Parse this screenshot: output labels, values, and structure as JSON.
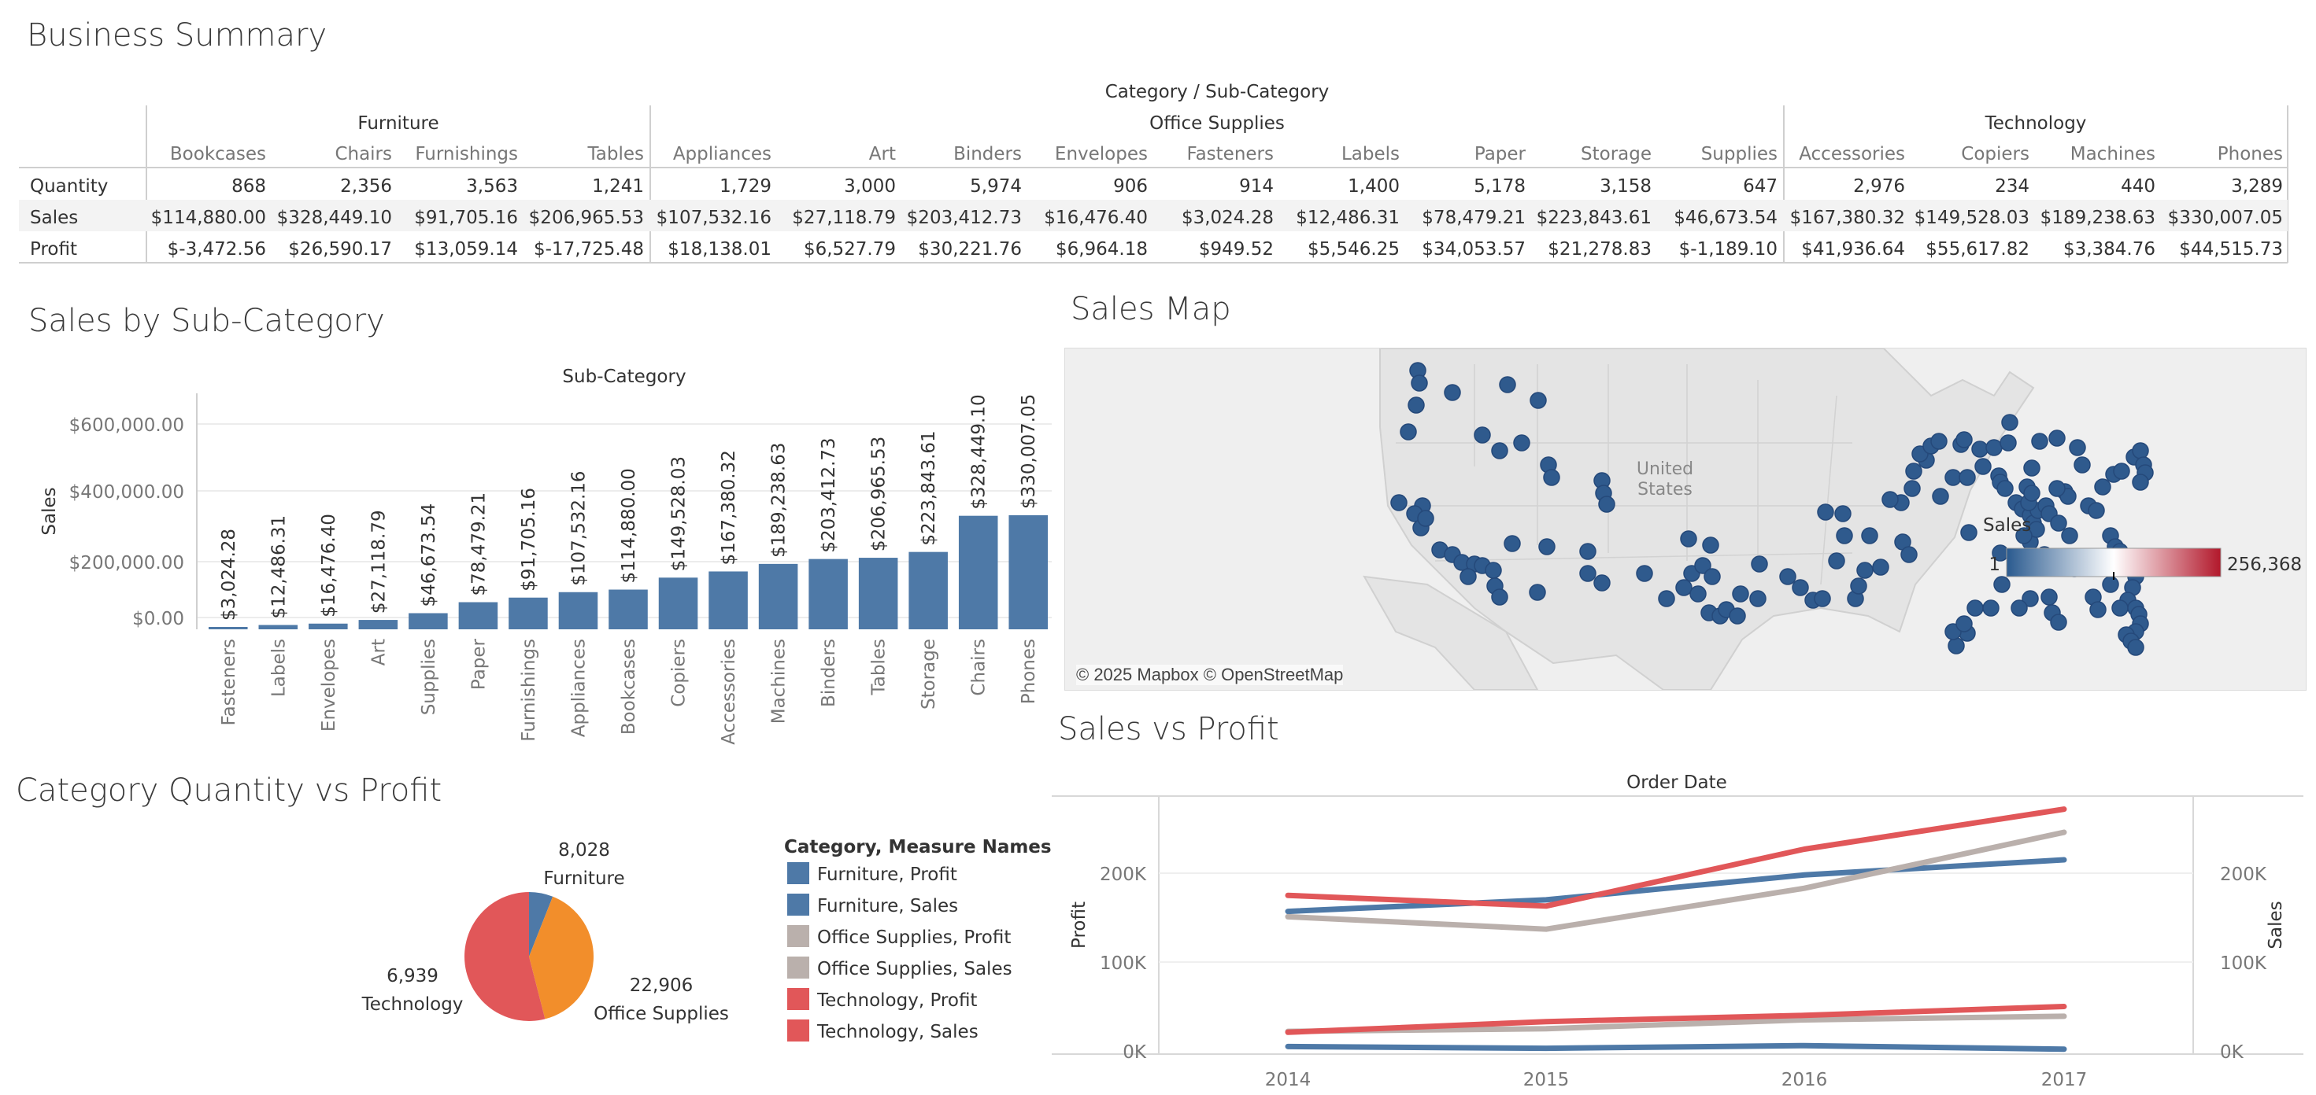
{
  "dashboard": {
    "titles": {
      "business_summary": "Business Summary",
      "sales_by_subcat": "Sales by Sub-Category",
      "sales_map": "Sales Map",
      "category_qty_profit": "Category Quantity vs Profit",
      "sales_vs_profit": "Sales vs Profit"
    }
  },
  "summary_table": {
    "header": "Category / Sub-Category",
    "categories": [
      "Furniture",
      "Office Supplies",
      "Technology"
    ],
    "subcategories": [
      "Bookcases",
      "Chairs",
      "Furnishings",
      "Tables",
      "Appliances",
      "Art",
      "Binders",
      "Envelopes",
      "Fasteners",
      "Labels",
      "Paper",
      "Storage",
      "Supplies",
      "Accessories",
      "Copiers",
      "Machines",
      "Phones"
    ],
    "row_labels": [
      "Quantity",
      "Sales",
      "Profit"
    ],
    "rows": [
      [
        "868",
        "2,356",
        "3,563",
        "1,241",
        "1,729",
        "3,000",
        "5,974",
        "906",
        "914",
        "1,400",
        "5,178",
        "3,158",
        "647",
        "2,976",
        "234",
        "440",
        "3,289"
      ],
      [
        "$114,880.00",
        "$328,449.10",
        "$91,705.16",
        "$206,965.53",
        "$107,532.16",
        "$27,118.79",
        "$203,412.73",
        "$16,476.40",
        "$3,024.28",
        "$12,486.31",
        "$78,479.21",
        "$223,843.61",
        "$46,673.54",
        "$167,380.32",
        "$149,528.03",
        "$189,238.63",
        "$330,007.05"
      ],
      [
        "$-3,472.56",
        "$26,590.17",
        "$13,059.14",
        "$-17,725.48",
        "$18,138.01",
        "$6,527.79",
        "$30,221.76",
        "$6,964.18",
        "$949.52",
        "$5,546.25",
        "$34,053.57",
        "$21,278.83",
        "$-1,189.10",
        "$41,936.64",
        "$55,617.82",
        "$3,384.76",
        "$44,515.73"
      ]
    ]
  },
  "bar_chart": {
    "header": "Sub-Category",
    "ylabel": "Sales",
    "yticks": [
      "$600,000.00",
      "$400,000.00",
      "$200,000.00",
      "$0.00"
    ],
    "color": "#4e79a7"
  },
  "map": {
    "country_label": "United\nStates",
    "attribution": "© 2025 Mapbox © OpenStreetMap",
    "legend_title": "Sales",
    "legend_min": "1",
    "legend_max": "256,368",
    "dot_color": "#2f5a8d"
  },
  "pie": {
    "legend_title": "Category, Measure Names",
    "legend_items": [
      {
        "label": "Furniture, Profit",
        "color": "#4e79a7"
      },
      {
        "label": "Furniture, Sales",
        "color": "#4e79a7"
      },
      {
        "label": "Office Supplies, Profit",
        "color": "#bab0ac"
      },
      {
        "label": "Office Supplies, Sales",
        "color": "#bab0ac"
      },
      {
        "label": "Technology, Profit",
        "color": "#e15759"
      },
      {
        "label": "Technology, Sales",
        "color": "#e15759"
      }
    ],
    "slices": [
      {
        "name": "Furniture",
        "value": "8,028",
        "color": "#4e79a7",
        "angle_fraction": 0.06
      },
      {
        "name": "Office Supplies",
        "value": "22,906",
        "color": "#f28e2b",
        "angle_fraction": 0.4
      },
      {
        "name": "Technology",
        "value": "6,939",
        "color": "#e15759",
        "angle_fraction": 0.54
      }
    ]
  },
  "line_chart": {
    "header": "Order Date",
    "ylabel_left": "Profit",
    "ylabel_right": "Sales",
    "yticks": [
      "200K",
      "100K",
      "0K"
    ]
  },
  "chart_data": [
    {
      "type": "bar",
      "title": "Sales by Sub-Category",
      "xlabel": "Sub-Category",
      "ylabel": "Sales",
      "ylim": [
        0,
        700000
      ],
      "categories": [
        "Fasteners",
        "Labels",
        "Envelopes",
        "Art",
        "Supplies",
        "Paper",
        "Furnishings",
        "Appliances",
        "Bookcases",
        "Copiers",
        "Accessories",
        "Machines",
        "Binders",
        "Tables",
        "Storage",
        "Chairs",
        "Phones"
      ],
      "values": [
        3024.28,
        12486.31,
        16476.4,
        27118.79,
        46673.54,
        78479.21,
        91705.16,
        107532.16,
        114880.0,
        149528.03,
        167380.32,
        189238.63,
        203412.73,
        206965.53,
        223843.61,
        328449.1,
        330007.05
      ],
      "value_labels": [
        "$3,024.28",
        "$12,486.31",
        "$16,476.40",
        "$27,118.79",
        "$46,673.54",
        "$78,479.21",
        "$91,705.16",
        "$107,532.16",
        "$114,880.00",
        "$149,528.03",
        "$167,380.32",
        "$189,238.63",
        "$203,412.73",
        "$206,965.53",
        "$223,843.61",
        "$328,449.10",
        "$330,007.05"
      ]
    },
    {
      "type": "pie",
      "title": "Category Quantity vs Profit",
      "categories": [
        "Furniture",
        "Office Supplies",
        "Technology"
      ],
      "values": [
        8028,
        22906,
        6939
      ]
    },
    {
      "type": "line",
      "title": "Sales vs Profit",
      "xlabel": "Order Date",
      "x": [
        "2014",
        "2015",
        "2016",
        "2017"
      ],
      "ylim": [
        0,
        280000
      ],
      "series": [
        {
          "name": "Furniture, Profit",
          "color": "#4e79a7",
          "values": [
            5000,
            3000,
            6000,
            2000
          ]
        },
        {
          "name": "Furniture, Sales",
          "color": "#4e79a7",
          "values": [
            157000,
            170000,
            198000,
            215000
          ]
        },
        {
          "name": "Office Supplies, Profit",
          "color": "#bab0ac",
          "values": [
            22000,
            25000,
            35000,
            39000
          ]
        },
        {
          "name": "Office Supplies, Sales",
          "color": "#bab0ac",
          "values": [
            151000,
            137000,
            183000,
            246000
          ]
        },
        {
          "name": "Technology, Profit",
          "color": "#e15759",
          "values": [
            21000,
            33000,
            40000,
            50000
          ]
        },
        {
          "name": "Technology, Sales",
          "color": "#e15759",
          "values": [
            175000,
            163000,
            227000,
            272000
          ]
        }
      ]
    }
  ]
}
